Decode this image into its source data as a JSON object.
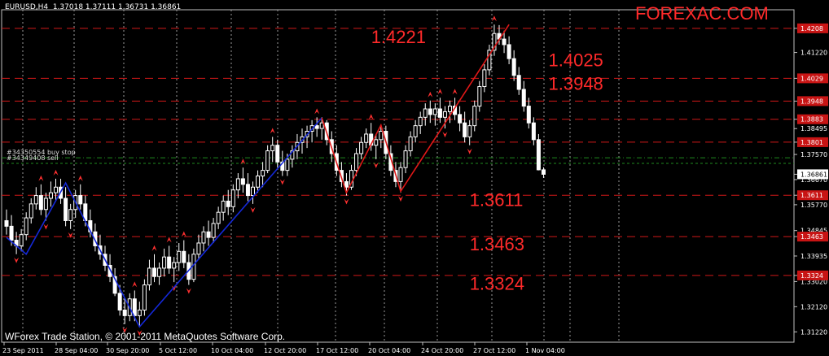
{
  "header": {
    "text": "EURUSD,H4  1.37018 1.37111 1.36731 1.36861"
  },
  "brand": {
    "text": "FOREXAC.COM"
  },
  "footer": {
    "text": "WForex Trade Station, © 2001-2011 MetaQuotes Software Corp."
  },
  "orders": [
    {
      "label": "#34350554 buy stop",
      "price": 1.3745
    },
    {
      "label": "#34349408 sell",
      "price": 1.3725
    }
  ],
  "colors": {
    "background": "#000000",
    "candle": "#ffffff",
    "zigzag_blue": "#1428d8",
    "zigzag_red": "#e01818",
    "level": "#d01818",
    "brand": "#ff2a2a",
    "arrow": "#ff3030",
    "order_line": "#1f8a1f"
  },
  "chart_data": {
    "type": "candlestick",
    "symbol": "EURUSD",
    "timeframe": "H4",
    "ohlc_readout": {
      "open": 1.37018,
      "high": 1.37111,
      "low": 1.36731,
      "close": 1.36861
    },
    "ylim": [
      1.3085,
      1.4275
    ],
    "y_ticks": [
      "1.42085",
      "1.41220",
      "1.40295",
      "1.39480",
      "1.38830",
      "1.38495",
      "1.38010",
      "1.37570",
      "1.36861",
      "1.36670",
      "1.36110",
      "1.35770",
      "1.34845",
      "1.34630",
      "1.33935",
      "1.33240",
      "1.33020",
      "1.32120",
      "1.31220"
    ],
    "x_ticks": [
      "23 Sep 2011",
      "28 Sep 04:00",
      "30 Sep 20:00",
      "5 Oct 12:00",
      "10 Oct 04:00",
      "12 Oct 20:00",
      "17 Oct 12:00",
      "20 Oct 04:00",
      "24 Oct 20:00",
      "27 Oct 12:00",
      "1 Nov 04:00"
    ],
    "current_price": 1.36861,
    "levels": [
      {
        "price": 1.42085,
        "tag": "1.4208"
      },
      {
        "price": 1.40295,
        "tag": "1.4029"
      },
      {
        "price": 1.3948,
        "tag": "1.3948"
      },
      {
        "price": 1.3883,
        "tag": "1.3883"
      },
      {
        "price": 1.3801,
        "tag": "1.3801"
      },
      {
        "price": 1.3611,
        "tag": "1.3611"
      },
      {
        "price": 1.3463,
        "tag": "1.3463"
      },
      {
        "price": 1.3324,
        "tag": "1.3324"
      }
    ],
    "annotations": [
      {
        "text": "1.4221",
        "bar": 74,
        "price": 1.4156
      },
      {
        "text": "1.4025",
        "bar": 110,
        "price": 1.4073
      },
      {
        "text": "1.3948",
        "bar": 110,
        "price": 1.3988
      },
      {
        "text": "1.3611",
        "bar": 94,
        "price": 1.3572
      },
      {
        "text": "1.3463",
        "bar": 94,
        "price": 1.3414
      },
      {
        "text": "1.3324",
        "bar": 94,
        "price": 1.3272
      }
    ],
    "zigzag_blue": [
      [
        0,
        1.346
      ],
      [
        4,
        1.34
      ],
      [
        12,
        1.3655
      ],
      [
        27,
        1.314
      ],
      [
        64,
        1.3888
      ]
    ],
    "zigzag_red": [
      [
        64,
        1.3888
      ],
      [
        69,
        1.362
      ],
      [
        76,
        1.3862
      ],
      [
        80,
        1.3625
      ],
      [
        102,
        1.4222
      ]
    ],
    "candles": [
      [
        1.352,
        1.356,
        1.347,
        1.35
      ],
      [
        1.35,
        1.354,
        1.343,
        1.345
      ],
      [
        1.345,
        1.348,
        1.34,
        1.343
      ],
      [
        1.343,
        1.349,
        1.341,
        1.347
      ],
      [
        1.347,
        1.355,
        1.345,
        1.353
      ],
      [
        1.353,
        1.36,
        1.351,
        1.358
      ],
      [
        1.358,
        1.364,
        1.356,
        1.361
      ],
      [
        1.361,
        1.365,
        1.354,
        1.356
      ],
      [
        1.356,
        1.362,
        1.352,
        1.36
      ],
      [
        1.36,
        1.366,
        1.357,
        1.362
      ],
      [
        1.362,
        1.367,
        1.359,
        1.364
      ],
      [
        1.364,
        1.367,
        1.358,
        1.36
      ],
      [
        1.36,
        1.364,
        1.35,
        1.352
      ],
      [
        1.352,
        1.358,
        1.349,
        1.356
      ],
      [
        1.356,
        1.363,
        1.353,
        1.361
      ],
      [
        1.361,
        1.365,
        1.356,
        1.358
      ],
      [
        1.358,
        1.361,
        1.35,
        1.352
      ],
      [
        1.352,
        1.356,
        1.346,
        1.348
      ],
      [
        1.348,
        1.351,
        1.341,
        1.343
      ],
      [
        1.343,
        1.347,
        1.338,
        1.34
      ],
      [
        1.34,
        1.343,
        1.334,
        1.336
      ],
      [
        1.336,
        1.34,
        1.33,
        1.332
      ],
      [
        1.332,
        1.335,
        1.325,
        1.326
      ],
      [
        1.326,
        1.329,
        1.318,
        1.32
      ],
      [
        1.32,
        1.324,
        1.315,
        1.318
      ],
      [
        1.318,
        1.326,
        1.316,
        1.324
      ],
      [
        1.324,
        1.327,
        1.316,
        1.318
      ],
      [
        1.318,
        1.323,
        1.314,
        1.32
      ],
      [
        1.32,
        1.331,
        1.318,
        1.329
      ],
      [
        1.329,
        1.338,
        1.327,
        1.335
      ],
      [
        1.335,
        1.34,
        1.33,
        1.332
      ],
      [
        1.332,
        1.337,
        1.329,
        1.335
      ],
      [
        1.335,
        1.342,
        1.332,
        1.339
      ],
      [
        1.339,
        1.343,
        1.333,
        1.335
      ],
      [
        1.335,
        1.339,
        1.33,
        1.337
      ],
      [
        1.337,
        1.344,
        1.334,
        1.341
      ],
      [
        1.341,
        1.345,
        1.335,
        1.337
      ],
      [
        1.337,
        1.34,
        1.329,
        1.331
      ],
      [
        1.331,
        1.342,
        1.33,
        1.34
      ],
      [
        1.34,
        1.347,
        1.338,
        1.344
      ],
      [
        1.344,
        1.35,
        1.341,
        1.348
      ],
      [
        1.348,
        1.352,
        1.343,
        1.346
      ],
      [
        1.346,
        1.353,
        1.344,
        1.351
      ],
      [
        1.351,
        1.357,
        1.349,
        1.355
      ],
      [
        1.355,
        1.361,
        1.352,
        1.359
      ],
      [
        1.359,
        1.363,
        1.354,
        1.357
      ],
      [
        1.357,
        1.365,
        1.355,
        1.363
      ],
      [
        1.363,
        1.369,
        1.36,
        1.367
      ],
      [
        1.367,
        1.371,
        1.362,
        1.365
      ],
      [
        1.365,
        1.369,
        1.359,
        1.361
      ],
      [
        1.361,
        1.366,
        1.358,
        1.364
      ],
      [
        1.364,
        1.37,
        1.362,
        1.368
      ],
      [
        1.368,
        1.373,
        1.364,
        1.37
      ],
      [
        1.37,
        1.379,
        1.369,
        1.377
      ],
      [
        1.377,
        1.382,
        1.373,
        1.379
      ],
      [
        1.379,
        1.381,
        1.371,
        1.373
      ],
      [
        1.373,
        1.377,
        1.368,
        1.37
      ],
      [
        1.37,
        1.376,
        1.368,
        1.374
      ],
      [
        1.374,
        1.379,
        1.371,
        1.377
      ],
      [
        1.377,
        1.383,
        1.374,
        1.38
      ],
      [
        1.38,
        1.385,
        1.376,
        1.382
      ],
      [
        1.382,
        1.386,
        1.378,
        1.384
      ],
      [
        1.384,
        1.388,
        1.38,
        1.386
      ],
      [
        1.386,
        1.389,
        1.382,
        1.385
      ],
      [
        1.385,
        1.389,
        1.381,
        1.387
      ],
      [
        1.387,
        1.388,
        1.379,
        1.381
      ],
      [
        1.381,
        1.384,
        1.373,
        1.376
      ],
      [
        1.376,
        1.379,
        1.368,
        1.37
      ],
      [
        1.37,
        1.373,
        1.364,
        1.366
      ],
      [
        1.366,
        1.369,
        1.361,
        1.364
      ],
      [
        1.364,
        1.372,
        1.363,
        1.37
      ],
      [
        1.37,
        1.378,
        1.368,
        1.376
      ],
      [
        1.376,
        1.382,
        1.374,
        1.38
      ],
      [
        1.38,
        1.385,
        1.378,
        1.383
      ],
      [
        1.383,
        1.387,
        1.377,
        1.379
      ],
      [
        1.379,
        1.383,
        1.374,
        1.381
      ],
      [
        1.381,
        1.386,
        1.378,
        1.384
      ],
      [
        1.384,
        1.386,
        1.374,
        1.376
      ],
      [
        1.376,
        1.379,
        1.368,
        1.37
      ],
      [
        1.37,
        1.373,
        1.364,
        1.366
      ],
      [
        1.366,
        1.373,
        1.362,
        1.371
      ],
      [
        1.371,
        1.379,
        1.369,
        1.377
      ],
      [
        1.377,
        1.384,
        1.375,
        1.382
      ],
      [
        1.382,
        1.388,
        1.38,
        1.386
      ],
      [
        1.386,
        1.391,
        1.383,
        1.389
      ],
      [
        1.389,
        1.394,
        1.386,
        1.392
      ],
      [
        1.392,
        1.395,
        1.387,
        1.39
      ],
      [
        1.39,
        1.394,
        1.386,
        1.392
      ],
      [
        1.392,
        1.396,
        1.387,
        1.389
      ],
      [
        1.389,
        1.393,
        1.385,
        1.391
      ],
      [
        1.391,
        1.395,
        1.387,
        1.393
      ],
      [
        1.393,
        1.396,
        1.388,
        1.39
      ],
      [
        1.39,
        1.393,
        1.384,
        1.387
      ],
      [
        1.387,
        1.391,
        1.38,
        1.382
      ],
      [
        1.382,
        1.388,
        1.379,
        1.386
      ],
      [
        1.386,
        1.395,
        1.384,
        1.393
      ],
      [
        1.393,
        1.402,
        1.391,
        1.4
      ],
      [
        1.4,
        1.408,
        1.398,
        1.406
      ],
      [
        1.406,
        1.415,
        1.404,
        1.413
      ],
      [
        1.413,
        1.4222,
        1.411,
        1.419
      ],
      [
        1.419,
        1.422,
        1.415,
        1.417
      ],
      [
        1.417,
        1.42,
        1.412,
        1.415
      ],
      [
        1.415,
        1.418,
        1.408,
        1.41
      ],
      [
        1.41,
        1.413,
        1.402,
        1.404
      ],
      [
        1.404,
        1.407,
        1.397,
        1.399
      ],
      [
        1.399,
        1.402,
        1.391,
        1.393
      ],
      [
        1.393,
        1.396,
        1.385,
        1.387
      ],
      [
        1.387,
        1.389,
        1.379,
        1.381
      ],
      [
        1.381,
        1.383,
        1.37,
        1.3702
      ],
      [
        1.3702,
        1.3711,
        1.3673,
        1.3686
      ]
    ],
    "grid": true,
    "legend": "none"
  }
}
